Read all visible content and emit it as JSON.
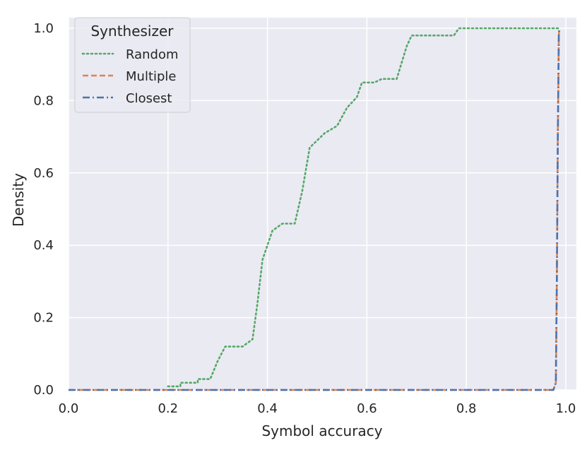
{
  "chart_data": {
    "type": "line",
    "xlabel": "Symbol accuracy",
    "ylabel": "Density",
    "xlim": [
      0.0,
      1.02
    ],
    "ylim": [
      0.0,
      1.02
    ],
    "xticks": [
      "0.0",
      "0.2",
      "0.4",
      "0.6",
      "0.8",
      "1.0"
    ],
    "yticks": [
      "0.0",
      "0.2",
      "0.4",
      "0.6",
      "0.8",
      "1.0"
    ],
    "grid": true,
    "legend": {
      "title": "Synthesizer",
      "placement": "top-left"
    },
    "series": [
      {
        "name": "Random",
        "color": "#55a868",
        "style": "dotted",
        "points": [
          [
            0.2,
            0.01
          ],
          [
            0.225,
            0.01
          ],
          [
            0.225,
            0.02
          ],
          [
            0.26,
            0.02
          ],
          [
            0.26,
            0.03
          ],
          [
            0.285,
            0.03
          ],
          [
            0.3,
            0.08
          ],
          [
            0.315,
            0.12
          ],
          [
            0.35,
            0.12
          ],
          [
            0.36,
            0.13
          ],
          [
            0.37,
            0.14
          ],
          [
            0.38,
            0.24
          ],
          [
            0.39,
            0.36
          ],
          [
            0.4,
            0.4
          ],
          [
            0.41,
            0.44
          ],
          [
            0.43,
            0.46
          ],
          [
            0.455,
            0.46
          ],
          [
            0.47,
            0.55
          ],
          [
            0.485,
            0.67
          ],
          [
            0.5,
            0.69
          ],
          [
            0.515,
            0.71
          ],
          [
            0.54,
            0.73
          ],
          [
            0.56,
            0.78
          ],
          [
            0.58,
            0.81
          ],
          [
            0.59,
            0.85
          ],
          [
            0.615,
            0.85
          ],
          [
            0.63,
            0.86
          ],
          [
            0.66,
            0.86
          ],
          [
            0.68,
            0.95
          ],
          [
            0.69,
            0.98
          ],
          [
            0.775,
            0.98
          ],
          [
            0.785,
            1.0
          ],
          [
            0.985,
            1.0
          ]
        ]
      },
      {
        "name": "Multiple",
        "color": "#dd8452",
        "style": "dashed",
        "points": [
          [
            0.0,
            0.0
          ],
          [
            0.975,
            0.0
          ],
          [
            0.98,
            0.02
          ],
          [
            0.982,
            0.3
          ],
          [
            0.984,
            0.7
          ],
          [
            0.986,
            0.98
          ],
          [
            0.987,
            1.0
          ]
        ]
      },
      {
        "name": "Closest",
        "color": "#4c72b0",
        "style": "dashdot",
        "points": [
          [
            0.0,
            0.0
          ],
          [
            0.975,
            0.0
          ],
          [
            0.98,
            0.02
          ],
          [
            0.982,
            0.3
          ],
          [
            0.984,
            0.7
          ],
          [
            0.986,
            0.98
          ],
          [
            0.987,
            1.0
          ]
        ]
      }
    ]
  }
}
